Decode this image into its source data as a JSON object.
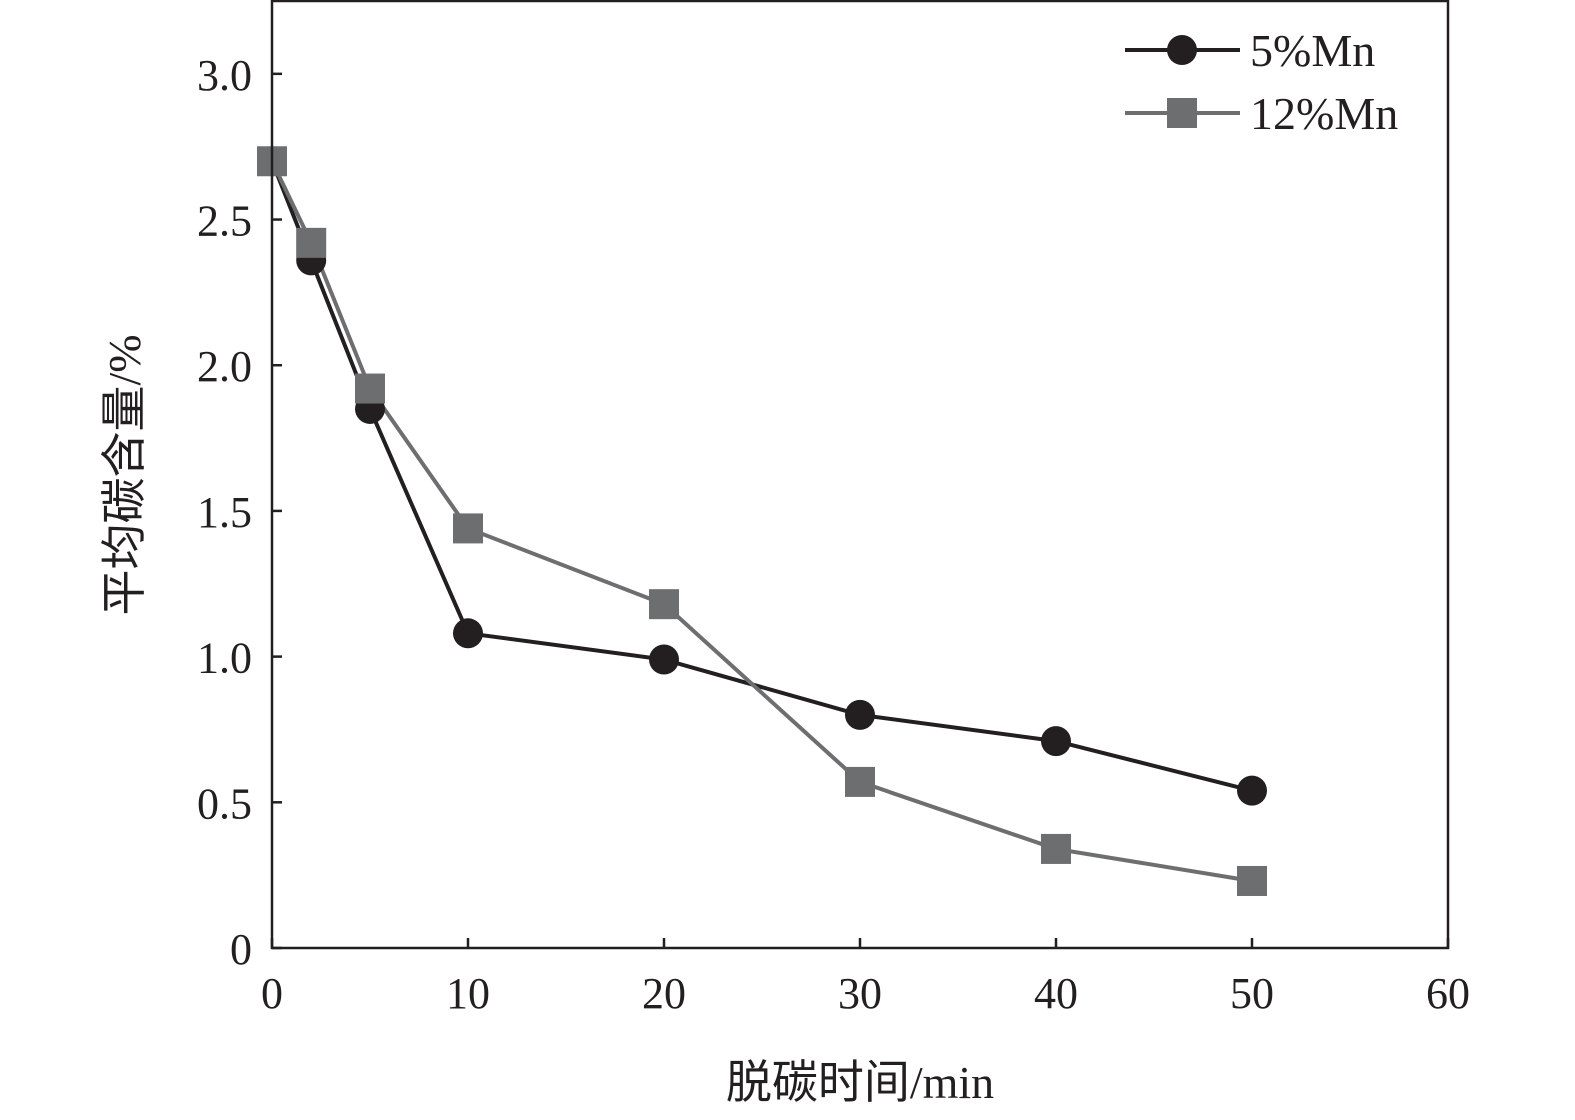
{
  "chart_data": {
    "type": "line",
    "title": "",
    "xlabel": "脱碳时间/min",
    "ylabel": "平均碳含量/%",
    "xlim": [
      0,
      60
    ],
    "ylim": [
      0,
      3.25
    ],
    "xticks": [
      0,
      10,
      20,
      30,
      40,
      50,
      60
    ],
    "xtick_labels": [
      "0",
      "10",
      "20",
      "30",
      "40",
      "50",
      "60"
    ],
    "yticks": [
      0,
      0.5,
      1.0,
      1.5,
      2.0,
      2.5,
      3.0
    ],
    "ytick_labels": [
      "0",
      "0.5",
      "1.0",
      "1.5",
      "2.0",
      "2.5",
      "3.0"
    ],
    "grid": false,
    "legend_position": "top-right",
    "x": [
      0,
      2,
      5,
      10,
      20,
      30,
      40,
      50
    ],
    "series": [
      {
        "name": "5%Mn",
        "marker": "circle",
        "color": "#231f20",
        "values": [
          2.7,
          2.36,
          1.85,
          1.08,
          0.99,
          0.8,
          0.71,
          0.54
        ]
      },
      {
        "name": "12%Mn",
        "marker": "square",
        "color": "#6d6e70",
        "values": [
          2.7,
          2.42,
          1.92,
          1.44,
          1.18,
          0.57,
          0.34,
          0.23
        ]
      }
    ]
  }
}
